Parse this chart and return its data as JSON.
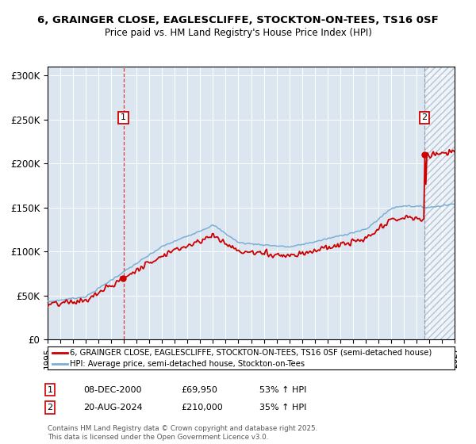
{
  "title_line1": "6, GRAINGER CLOSE, EAGLESCLIFFE, STOCKTON-ON-TEES, TS16 0SF",
  "title_line2": "Price paid vs. HM Land Registry's House Price Index (HPI)",
  "bg_color": "#dce6f1",
  "line1_color": "#cc0000",
  "line2_color": "#7bafd4",
  "ylim_min": 0,
  "ylim_max": 310000,
  "yticks": [
    0,
    50000,
    100000,
    150000,
    200000,
    250000,
    300000
  ],
  "ytick_labels": [
    "£0",
    "£50K",
    "£100K",
    "£150K",
    "£200K",
    "£250K",
    "£300K"
  ],
  "legend_line1": "6, GRAINGER CLOSE, EAGLESCLIFFE, STOCKTON-ON-TEES, TS16 0SF (semi-detached house)",
  "legend_line2": "HPI: Average price, semi-detached house, Stockton-on-Tees",
  "annotation1_label": "1",
  "annotation1_date": "08-DEC-2000",
  "annotation1_price": "£69,950",
  "annotation1_hpi": "53% ↑ HPI",
  "annotation2_label": "2",
  "annotation2_date": "20-AUG-2024",
  "annotation2_price": "£210,000",
  "annotation2_hpi": "35% ↑ HPI",
  "footer": "Contains HM Land Registry data © Crown copyright and database right 2025.\nThis data is licensed under the Open Government Licence v3.0.",
  "sale1_t": 2000.958,
  "sale2_t": 2024.625,
  "sale1_price": 69950,
  "sale2_price": 210000
}
